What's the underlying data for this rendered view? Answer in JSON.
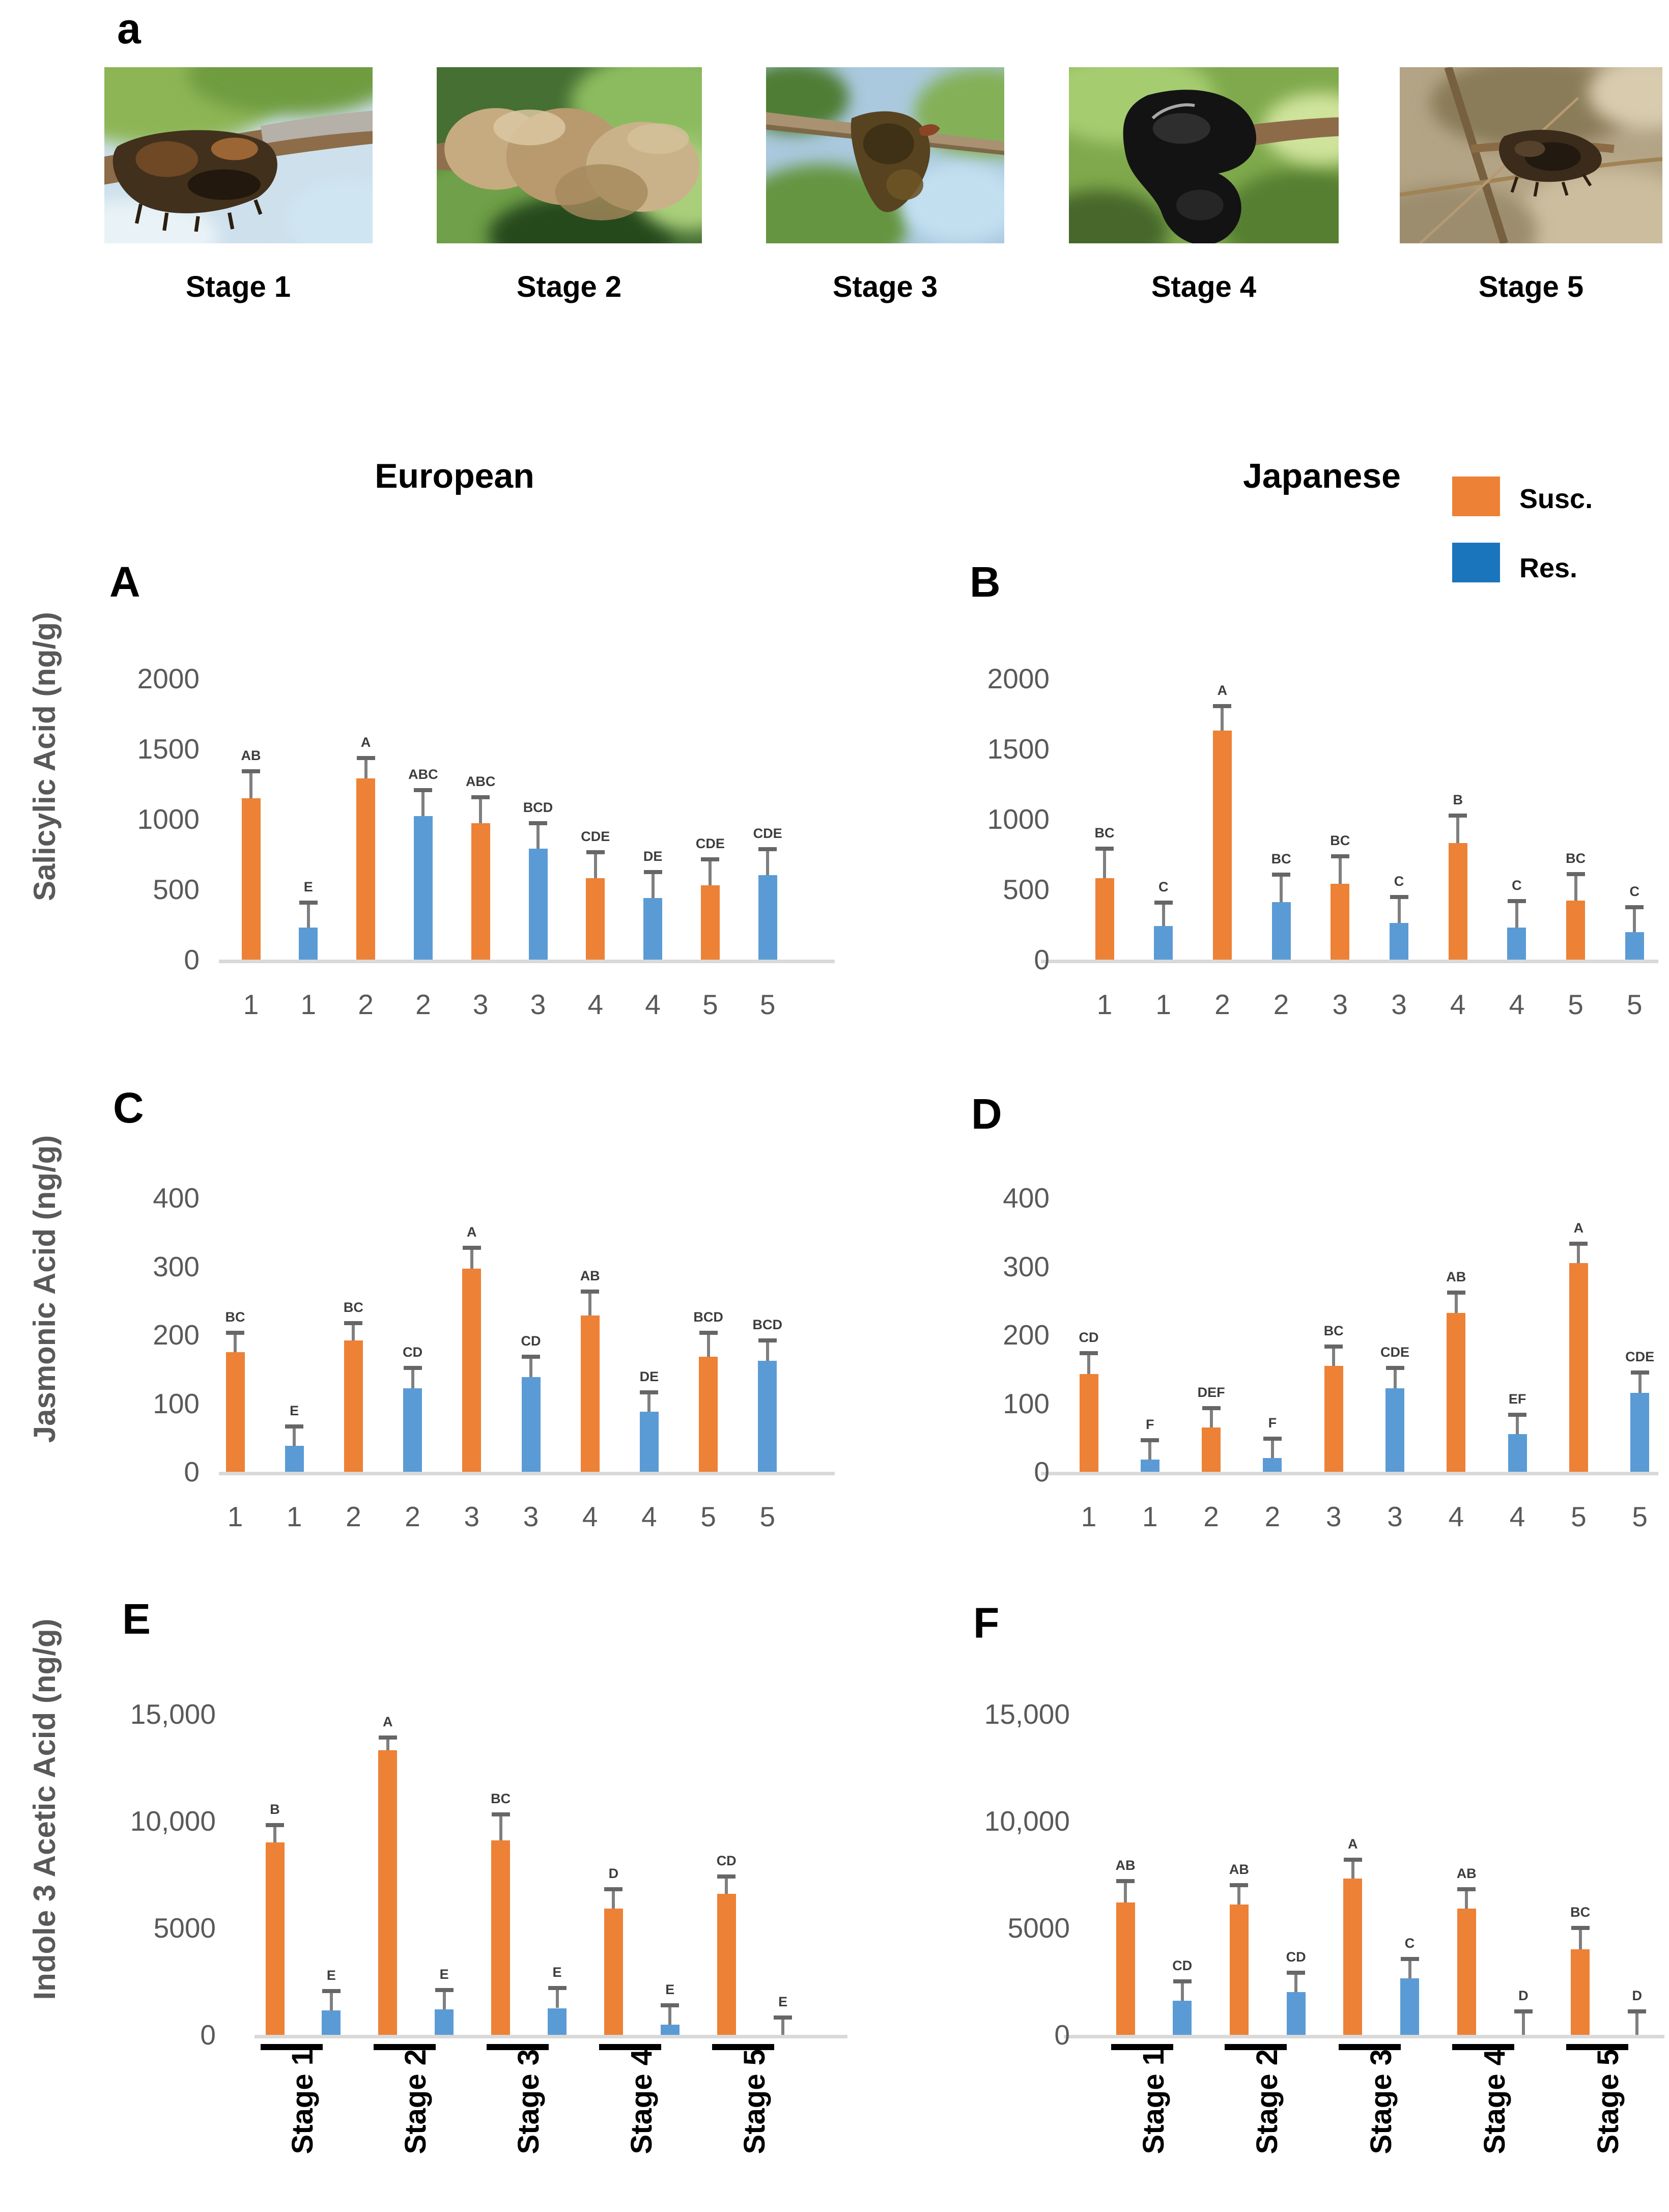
{
  "figure_tag": "a",
  "stage_photos": [
    {
      "label": "Stage 1"
    },
    {
      "label": "Stage 2"
    },
    {
      "label": "Stage 3"
    },
    {
      "label": "Stage 4"
    },
    {
      "label": "Stage 5"
    }
  ],
  "column_titles": {
    "left": "European",
    "right": "Japanese"
  },
  "legend": [
    {
      "label": "Susc.",
      "color": "#ED8136"
    },
    {
      "label": "Res.",
      "color": "#1B75BC"
    }
  ],
  "row_axis_titles": [
    "Salicylic Acid (ng/g)",
    "Jasmonic Acid (ng/g)",
    "Indole 3 Acetic Acid (ng/g)"
  ],
  "bar_colors": {
    "susc": "#ED8136",
    "res": "#5B9BD5"
  },
  "chart_data": [
    {
      "panel": "A",
      "type": "bar",
      "group": "European",
      "ylabel": "Salicylic Acid (ng/g)",
      "ylim": [
        0,
        2000
      ],
      "yticks": [
        "0",
        "500",
        "1000",
        "1500",
        "2000"
      ],
      "x_tick_labels": [
        "1",
        "1",
        "2",
        "2",
        "3",
        "3",
        "4",
        "4",
        "5",
        "5"
      ],
      "categories": [
        "Stage 1",
        "Stage 2",
        "Stage 3",
        "Stage 4",
        "Stage 5"
      ],
      "series": [
        {
          "name": "Susc.",
          "values": [
            1150,
            1290,
            970,
            580,
            530
          ],
          "errors": [
            190,
            145,
            185,
            185,
            185
          ],
          "sig": [
            "AB",
            "A",
            "ABC",
            "CDE",
            "CDE"
          ]
        },
        {
          "name": "Res.",
          "values": [
            230,
            1020,
            790,
            440,
            600
          ],
          "errors": [
            175,
            185,
            180,
            185,
            185
          ],
          "sig": [
            "E",
            "ABC",
            "BCD",
            "DE",
            "CDE"
          ]
        }
      ]
    },
    {
      "panel": "B",
      "type": "bar",
      "group": "Japanese",
      "ylabel": "Salicylic Acid (ng/g)",
      "ylim": [
        0,
        2000
      ],
      "yticks": [
        "0",
        "500",
        "1000",
        "1500",
        "2000"
      ],
      "x_tick_labels": [
        "1",
        "1",
        "2",
        "2",
        "3",
        "3",
        "4",
        "4",
        "5",
        "5"
      ],
      "categories": [
        "Stage 1",
        "Stage 2",
        "Stage 3",
        "Stage 4",
        "Stage 5"
      ],
      "series": [
        {
          "name": "Susc.",
          "values": [
            580,
            1630,
            540,
            830,
            420
          ],
          "errors": [
            210,
            175,
            195,
            195,
            190
          ],
          "sig": [
            "BC",
            "A",
            "BC",
            "B",
            "BC"
          ]
        },
        {
          "name": "Res.",
          "values": [
            240,
            410,
            260,
            230,
            195
          ],
          "errors": [
            165,
            195,
            185,
            185,
            180
          ],
          "sig": [
            "C",
            "BC",
            "C",
            "C",
            "C"
          ]
        }
      ]
    },
    {
      "panel": "C",
      "type": "bar",
      "group": "European",
      "ylabel": "Jasmonic Acid (ng/g)",
      "ylim": [
        0,
        400
      ],
      "yticks": [
        "0",
        "100",
        "200",
        "300",
        "400"
      ],
      "x_tick_labels": [
        "1",
        "1",
        "2",
        "2",
        "3",
        "3",
        "4",
        "4",
        "5",
        "5"
      ],
      "categories": [
        "Stage 1",
        "Stage 2",
        "Stage 3",
        "Stage 4",
        "Stage 5"
      ],
      "series": [
        {
          "name": "Susc.",
          "values": [
            175,
            192,
            297,
            228,
            168
          ],
          "errors": [
            28,
            25,
            30,
            35,
            35
          ],
          "sig": [
            "BC",
            "BC",
            "A",
            "AB",
            "BCD"
          ]
        },
        {
          "name": "Res.",
          "values": [
            38,
            122,
            138,
            88,
            162
          ],
          "errors": [
            28,
            30,
            30,
            28,
            30
          ],
          "sig": [
            "E",
            "CD",
            "CD",
            "DE",
            "BCD"
          ]
        }
      ]
    },
    {
      "panel": "D",
      "type": "bar",
      "group": "Japanese",
      "ylabel": "Jasmonic Acid (ng/g)",
      "ylim": [
        0,
        400
      ],
      "yticks": [
        "0",
        "100",
        "200",
        "300",
        "400"
      ],
      "x_tick_labels": [
        "1",
        "1",
        "2",
        "2",
        "3",
        "3",
        "4",
        "4",
        "5",
        "5"
      ],
      "categories": [
        "Stage 1",
        "Stage 2",
        "Stage 3",
        "Stage 4",
        "Stage 5"
      ],
      "series": [
        {
          "name": "Susc.",
          "values": [
            143,
            65,
            155,
            232,
            305
          ],
          "errors": [
            30,
            28,
            28,
            30,
            28
          ],
          "sig": [
            "CD",
            "DEF",
            "BC",
            "AB",
            "A"
          ]
        },
        {
          "name": "Res.",
          "values": [
            18,
            20,
            122,
            55,
            115
          ],
          "errors": [
            28,
            28,
            30,
            28,
            30
          ],
          "sig": [
            "F",
            "F",
            "CDE",
            "EF",
            "CDE"
          ]
        }
      ]
    },
    {
      "panel": "E",
      "type": "bar",
      "group": "European",
      "ylabel": "Indole 3 Acetic Acid (ng/g)",
      "ylim": [
        0,
        15000
      ],
      "yticks": [
        "0",
        "5000",
        "10,000",
        "15,000"
      ],
      "x_group_labels": [
        "Stage 1",
        "Stage 2",
        "Stage 3",
        "Stage 4",
        "Stage 5"
      ],
      "categories": [
        "Stage 1",
        "Stage 2",
        "Stage 3",
        "Stage 4",
        "Stage 5"
      ],
      "series": [
        {
          "name": "Susc.",
          "values": [
            9000,
            13300,
            9100,
            5900,
            6600
          ],
          "errors": [
            800,
            600,
            1200,
            900,
            800
          ],
          "sig": [
            "B",
            "A",
            "BC",
            "D",
            "CD"
          ]
        },
        {
          "name": "Res.",
          "values": [
            1150,
            1200,
            1250,
            480,
            0
          ],
          "errors": [
            900,
            900,
            950,
            900,
            800
          ],
          "sig": [
            "E",
            "E",
            "E",
            "E",
            "E"
          ]
        }
      ]
    },
    {
      "panel": "F",
      "type": "bar",
      "group": "Japanese",
      "ylabel": "Indole 3 Acetic Acid (ng/g)",
      "ylim": [
        0,
        15000
      ],
      "yticks": [
        "0",
        "5000",
        "10,000",
        "15,000"
      ],
      "x_group_labels": [
        "Stage 1",
        "Stage 2",
        "Stage 3",
        "Stage 4",
        "Stage 5"
      ],
      "categories": [
        "Stage 1",
        "Stage 2",
        "Stage 3",
        "Stage 4",
        "Stage 5"
      ],
      "series": [
        {
          "name": "Susc.",
          "values": [
            6200,
            6100,
            7300,
            5900,
            4000
          ],
          "errors": [
            1000,
            900,
            880,
            900,
            1000
          ],
          "sig": [
            "AB",
            "AB",
            "A",
            "AB",
            "BC"
          ]
        },
        {
          "name": "Res.",
          "values": [
            1600,
            2000,
            2650,
            0,
            0
          ],
          "errors": [
            900,
            900,
            900,
            1100,
            1100
          ],
          "sig": [
            "CD",
            "CD",
            "C",
            "D",
            "D"
          ]
        }
      ]
    }
  ]
}
